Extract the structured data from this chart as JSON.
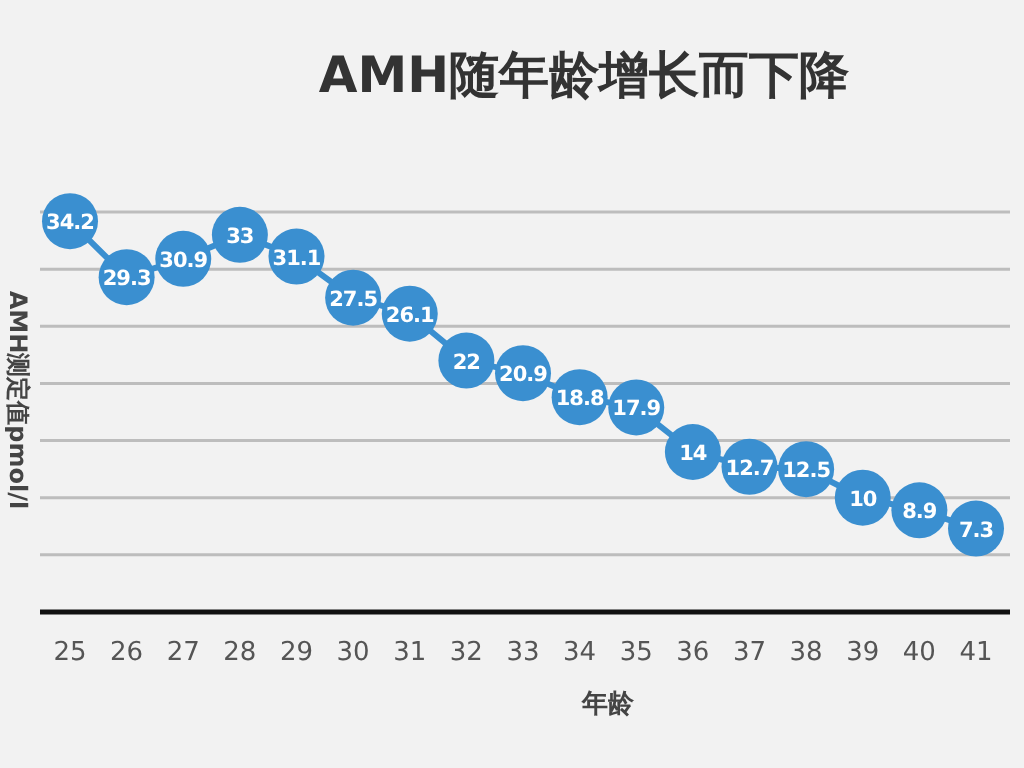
{
  "chart_data": {
    "type": "line",
    "title": "AMH随年龄增长而下降",
    "xlabel": "年龄",
    "ylabel": "AMH测定值pmol/l",
    "categories": [
      "25",
      "26",
      "27",
      "28",
      "29",
      "30",
      "31",
      "32",
      "33",
      "34",
      "35",
      "36",
      "37",
      "38",
      "39",
      "40",
      "41"
    ],
    "values": [
      34.2,
      29.3,
      30.9,
      33,
      31.1,
      27.5,
      26.1,
      22,
      20.9,
      18.8,
      17.9,
      14,
      12.7,
      12.5,
      10,
      8.9,
      7.3
    ],
    "color": "#3a8fd0",
    "marker": "circle",
    "data_labels": true,
    "grid": "y",
    "tick_labels": "x",
    "ylim": [
      0,
      35
    ],
    "yticks": [
      {
        "value": 0,
        "label": null
      },
      {
        "value": 5,
        "label": null
      },
      {
        "value": 10,
        "label": null
      },
      {
        "value": 15,
        "label": null
      },
      {
        "value": 20,
        "label": null
      },
      {
        "value": 25,
        "label": null
      },
      {
        "value": 30,
        "label": null
      },
      {
        "value": 35,
        "label": null
      }
    ]
  }
}
